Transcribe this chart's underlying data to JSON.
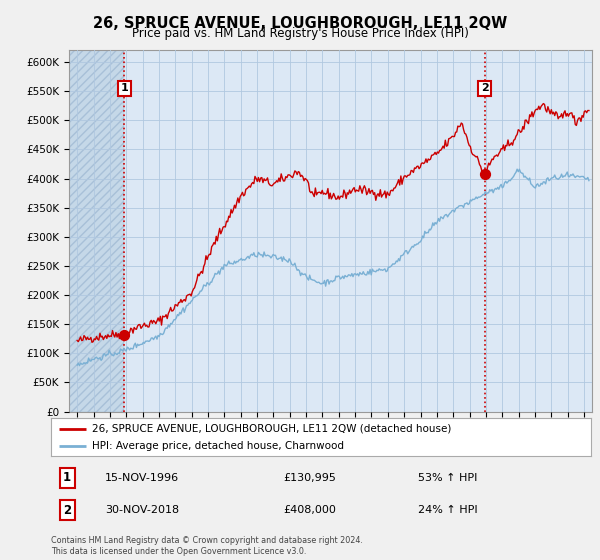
{
  "title": "26, SPRUCE AVENUE, LOUGHBOROUGH, LE11 2QW",
  "subtitle": "Price paid vs. HM Land Registry's House Price Index (HPI)",
  "red_label": "26, SPRUCE AVENUE, LOUGHBOROUGH, LE11 2QW (detached house)",
  "blue_label": "HPI: Average price, detached house, Charnwood",
  "marker1_date": "15-NOV-1996",
  "marker1_price": "£130,995",
  "marker1_hpi": "53% ↑ HPI",
  "marker2_date": "30-NOV-2018",
  "marker2_price": "£408,000",
  "marker2_hpi": "24% ↑ HPI",
  "footer": "Contains HM Land Registry data © Crown copyright and database right 2024.\nThis data is licensed under the Open Government Licence v3.0.",
  "ylim": [
    0,
    620000
  ],
  "yticks": [
    0,
    50000,
    100000,
    150000,
    200000,
    250000,
    300000,
    350000,
    400000,
    450000,
    500000,
    550000,
    600000
  ],
  "ytick_labels": [
    "£0",
    "£50K",
    "£100K",
    "£150K",
    "£200K",
    "£250K",
    "£300K",
    "£350K",
    "£400K",
    "£450K",
    "£500K",
    "£550K",
    "£600K"
  ],
  "xlim_start": 1993.5,
  "xlim_end": 2025.5,
  "marker1_x": 1996.88,
  "marker1_y": 130995,
  "marker2_x": 2018.92,
  "marker2_y": 408000,
  "bg_color": "#f0f0f0",
  "plot_bg_color": "#dce8f5",
  "red_color": "#cc0000",
  "blue_color": "#7ab0d4",
  "grid_color": "#b0c8e0",
  "hatch_color": "#c8d8e8"
}
